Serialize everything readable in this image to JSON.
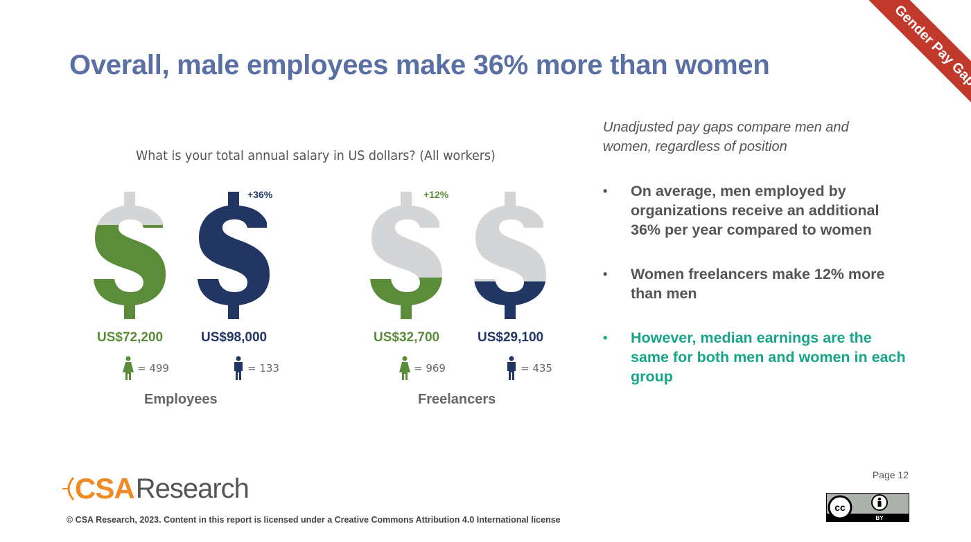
{
  "title": "Overall, male employees make 36% more than women",
  "ribbon": "Gender Pay Gap",
  "colors": {
    "title": "#5a6fa3",
    "women": "#5b8c3a",
    "men": "#213663",
    "empty": "#d4d5d7",
    "highlight": "#17a589",
    "ribbon": "#c0392b",
    "brand": "#f08a24"
  },
  "chart_data": {
    "type": "bar",
    "title": "What is your total annual salary in US dollars? (All workers)",
    "groups": [
      {
        "name": "Employees",
        "bars": [
          {
            "label": "US$72,200",
            "value": 72200,
            "gender": "women",
            "n_label": "= 499",
            "n": 499,
            "fill_fraction": 0.74,
            "diff_label": ""
          },
          {
            "label": "US$98,000",
            "value": 98000,
            "gender": "men",
            "n_label": "= 133",
            "n": 133,
            "fill_fraction": 1.0,
            "diff_label": "+36%"
          }
        ]
      },
      {
        "name": "Freelancers",
        "bars": [
          {
            "label": "US$32,700",
            "value": 32700,
            "gender": "women",
            "n_label": "= 969",
            "n": 969,
            "fill_fraction": 0.33,
            "diff_label": "+12%"
          },
          {
            "label": "US$29,100",
            "value": 29100,
            "gender": "men",
            "n_label": "= 435",
            "n": 435,
            "fill_fraction": 0.3,
            "diff_label": ""
          }
        ]
      }
    ]
  },
  "side": {
    "subtitle": "Unadjusted pay gaps compare men and women, regardless of position",
    "bullet_marker": "•",
    "bullets": [
      {
        "text": "On average, men employed by organizations receive an additional 36% per year compared to women"
      },
      {
        "text": "Women freelancers make 12% more than men"
      },
      {
        "text": "However, median earnings are the same for both men and women in each group"
      }
    ]
  },
  "footer": {
    "page": "Page 12",
    "logo_csa": "CSA",
    "logo_research": "Research",
    "copyright": "© CSA Research, 2023. Content in this report is licensed under a Creative Commons Attribution 4.0 International license",
    "license_badge": "BY",
    "license_icon": "cc-icon"
  }
}
